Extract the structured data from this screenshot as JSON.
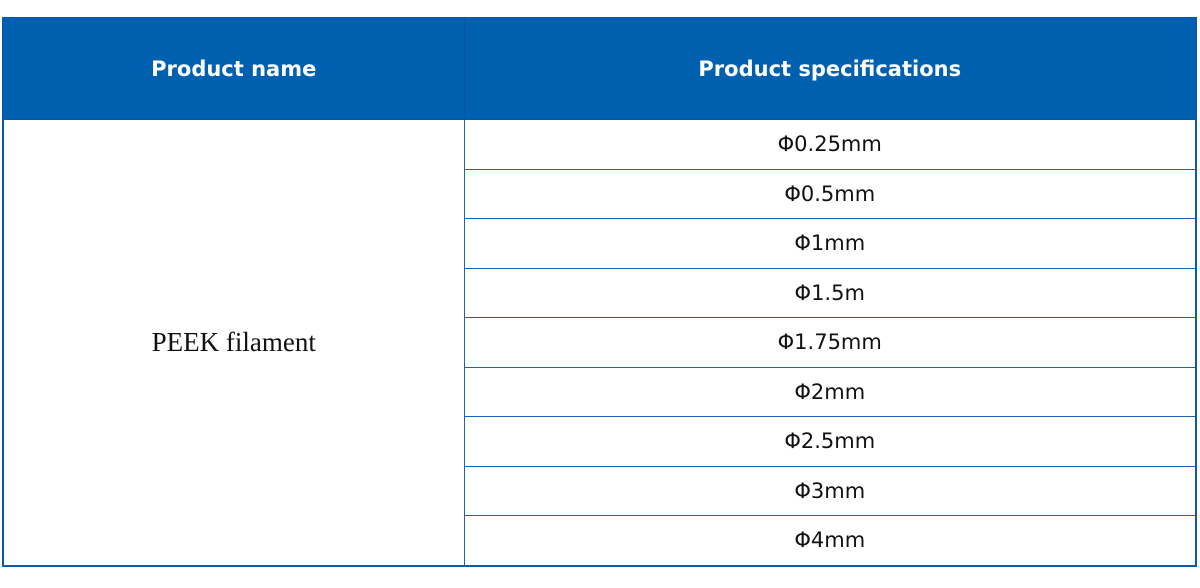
{
  "table": {
    "headers": [
      "Product name",
      "Product specifications"
    ],
    "product_name": "PEEK filament",
    "specifications": [
      "Φ0.25mm",
      "Φ0.5mm",
      "Φ1mm",
      "Φ1.5m",
      "Φ1.75mm",
      "Φ2mm",
      "Φ2.5mm",
      "Φ3mm",
      "Φ4mm"
    ],
    "header_color": "#0060b0",
    "border_color": "#1a64b4"
  }
}
